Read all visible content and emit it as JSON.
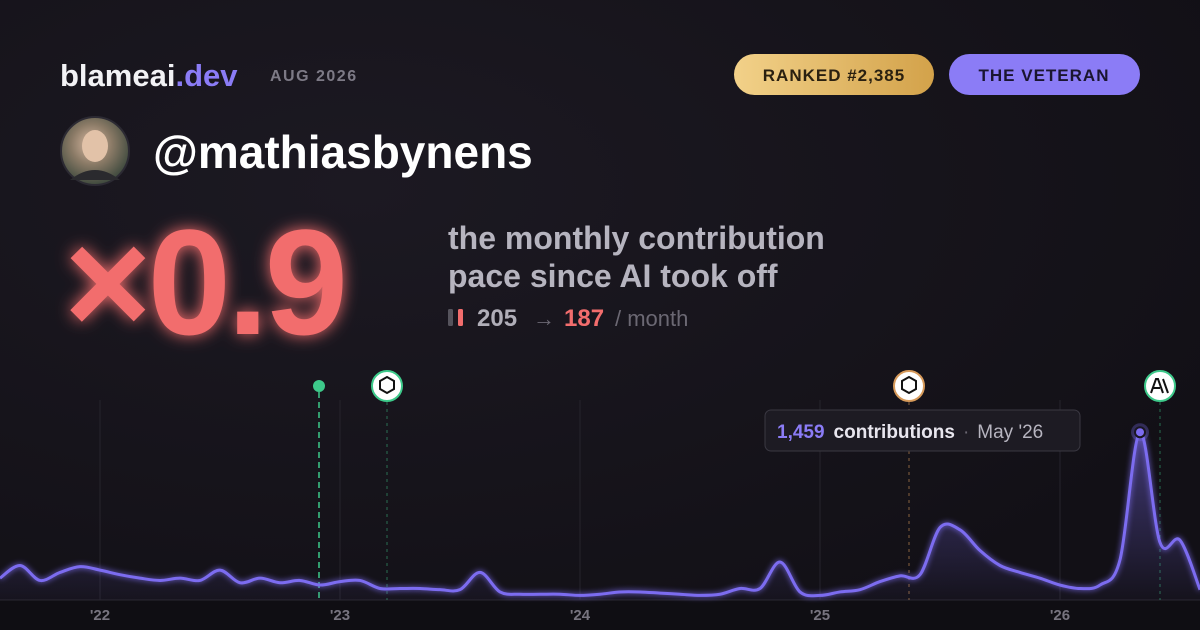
{
  "header": {
    "brand": "blameai",
    "brand_tld": ".dev",
    "date": "AUG 2026",
    "rank_badge": "RANKED #2,385",
    "title_badge": "THE VETERAN"
  },
  "profile": {
    "handle": "@mathiasbynens"
  },
  "summary": {
    "multiplier": "×0.9",
    "description": [
      "the monthly contribution",
      "pace since AI took off"
    ],
    "before": "205",
    "arrow": "→",
    "after": "187",
    "unit": "/ month"
  },
  "chart_data": {
    "type": "area",
    "categories": [
      null,
      null,
      null,
      null,
      null,
      "'22",
      null,
      null,
      null,
      null,
      null,
      null,
      null,
      null,
      null,
      null,
      null,
      "'23",
      null,
      null,
      null,
      null,
      null,
      null,
      null,
      null,
      null,
      null,
      null,
      "'24",
      null,
      null,
      null,
      null,
      null,
      null,
      null,
      null,
      null,
      null,
      null,
      "'25",
      null,
      null,
      null,
      null,
      null,
      null,
      null,
      null,
      null,
      null,
      null,
      "'26",
      null,
      null,
      null,
      null,
      null,
      null,
      null
    ],
    "series": [
      {
        "name": "contributions",
        "color": "#7c6cf0",
        "values": [
          190,
          300,
          170,
          240,
          290,
          260,
          220,
          190,
          170,
          190,
          170,
          260,
          150,
          190,
          150,
          170,
          130,
          160,
          170,
          100,
          100,
          100,
          90,
          90,
          240,
          70,
          50,
          50,
          50,
          40,
          50,
          70,
          70,
          60,
          50,
          40,
          50,
          100,
          100,
          330,
          70,
          40,
          70,
          90,
          160,
          210,
          220,
          630,
          610,
          430,
          300,
          240,
          190,
          130,
          100,
          130,
          350,
          1459,
          500,
          520,
          90
        ]
      }
    ],
    "ylim": [
      0,
      1800
    ],
    "tooltip": {
      "value_label": "1,459",
      "unit": "contributions",
      "separator": "·",
      "date": "May '26"
    }
  }
}
